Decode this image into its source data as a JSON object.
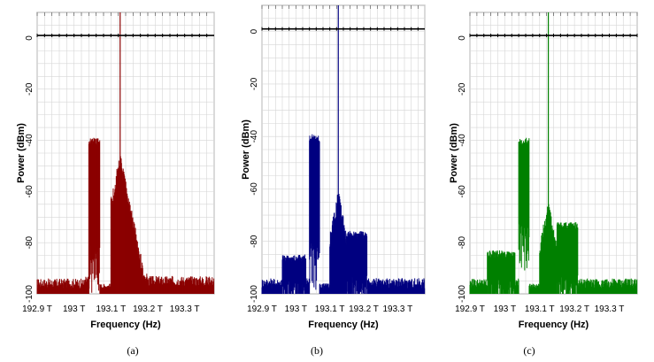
{
  "figure": {
    "captions": [
      "(a)",
      "(b)",
      "(c)"
    ]
  },
  "chart_data": [
    {
      "type": "line",
      "color": "#8b0000",
      "xlabel": "Frequency (Hz)",
      "ylabel": "Power (dBm)",
      "xticks": [
        "192.9 T",
        "193 T",
        "193.1 T",
        "193.2 T",
        "193.3 T"
      ],
      "xtick_values": [
        192.9,
        193.0,
        193.1,
        193.2,
        193.3
      ],
      "yticks": [
        "0",
        "-20",
        "-40",
        "-60",
        "-80",
        "-100"
      ],
      "ytick_values": [
        0,
        -20,
        -40,
        -60,
        -80,
        -100
      ],
      "xlim": [
        192.9,
        193.38
      ],
      "ylim": [
        -100,
        10
      ],
      "grid": true,
      "reference_line_dBm": 1,
      "carrier": {
        "x": 193.125,
        "y": 10
      },
      "regions": [
        {
          "x": [
            192.9,
            193.03
          ],
          "level": -98,
          "noise": 2
        },
        {
          "x": [
            193.03,
            193.04
          ],
          "level": -97,
          "noise": 2
        },
        {
          "x": [
            193.04,
            193.07
          ],
          "top": -39,
          "floor": -85,
          "type": "block"
        },
        {
          "x": [
            193.07,
            193.1
          ],
          "level": -98,
          "noise": 1
        },
        {
          "x": [
            193.1,
            193.2
          ],
          "peak": -45,
          "floor": -97,
          "type": "peak",
          "center": 193.125
        },
        {
          "x": [
            193.2,
            193.38
          ],
          "level": -97,
          "noise": 2
        }
      ]
    },
    {
      "type": "line",
      "color": "#000080",
      "xlabel": "Frequency (Hz)",
      "ylabel": "Power (dBm)",
      "xticks": [
        "192.9 T",
        "193 T",
        "193.1 T",
        "193.2 T",
        "193.3 T"
      ],
      "xtick_values": [
        192.9,
        193.0,
        193.1,
        193.2,
        193.3
      ],
      "yticks": [
        "0",
        "-20",
        "-40",
        "-60",
        "-80",
        "-100"
      ],
      "ytick_values": [
        0,
        -20,
        -40,
        -60,
        -80,
        -100
      ],
      "xlim": [
        192.9,
        193.38
      ],
      "ylim": [
        -100,
        10
      ],
      "grid": true,
      "reference_line_dBm": 1,
      "carrier": {
        "x": 193.125,
        "y": 10
      },
      "regions": [
        {
          "x": [
            192.9,
            192.96
          ],
          "level": -98,
          "noise": 2
        },
        {
          "x": [
            192.96,
            193.03
          ],
          "top": -85,
          "floor": -98,
          "type": "block"
        },
        {
          "x": [
            193.03,
            193.04
          ],
          "level": -98,
          "noise": 2
        },
        {
          "x": [
            193.04,
            193.07
          ],
          "top": -39,
          "floor": -83,
          "type": "block"
        },
        {
          "x": [
            193.07,
            193.1
          ],
          "level": -98,
          "noise": 1
        },
        {
          "x": [
            193.1,
            193.15
          ],
          "peak": -60,
          "floor": -97,
          "type": "peak",
          "center": 193.125
        },
        {
          "x": [
            193.15,
            193.21
          ],
          "top": -76,
          "floor": -97,
          "type": "block"
        },
        {
          "x": [
            193.21,
            193.38
          ],
          "level": -98,
          "noise": 2
        }
      ]
    },
    {
      "type": "line",
      "color": "#008000",
      "xlabel": "Frequency (Hz)",
      "ylabel": "Power (dBm)",
      "xticks": [
        "192.9 T",
        "193 T",
        "193.1 T",
        "193.2 T",
        "193.3 T"
      ],
      "xtick_values": [
        192.9,
        193.0,
        193.1,
        193.2,
        193.3
      ],
      "yticks": [
        "0",
        "-20",
        "-40",
        "-60",
        "-80",
        "-100"
      ],
      "ytick_values": [
        0,
        -20,
        -40,
        -60,
        -80,
        -100
      ],
      "xlim": [
        192.9,
        193.38
      ],
      "ylim": [
        -100,
        10
      ],
      "grid": true,
      "reference_line_dBm": 1,
      "carrier": {
        "x": 193.125,
        "y": 10
      },
      "regions": [
        {
          "x": [
            192.9,
            192.95
          ],
          "level": -98,
          "noise": 2
        },
        {
          "x": [
            192.95,
            193.03
          ],
          "top": -83,
          "floor": -98,
          "type": "block"
        },
        {
          "x": [
            193.03,
            193.04
          ],
          "level": -98,
          "noise": 2
        },
        {
          "x": [
            193.04,
            193.07
          ],
          "top": -39,
          "floor": -75,
          "type": "block"
        },
        {
          "x": [
            193.07,
            193.1
          ],
          "level": -98,
          "noise": 1
        },
        {
          "x": [
            193.1,
            193.15
          ],
          "peak": -63,
          "floor": -96,
          "type": "peak",
          "center": 193.125
        },
        {
          "x": [
            193.15,
            193.21
          ],
          "top": -72,
          "floor": -96,
          "type": "block"
        },
        {
          "x": [
            193.21,
            193.38
          ],
          "level": -98,
          "noise": 2
        }
      ]
    }
  ]
}
